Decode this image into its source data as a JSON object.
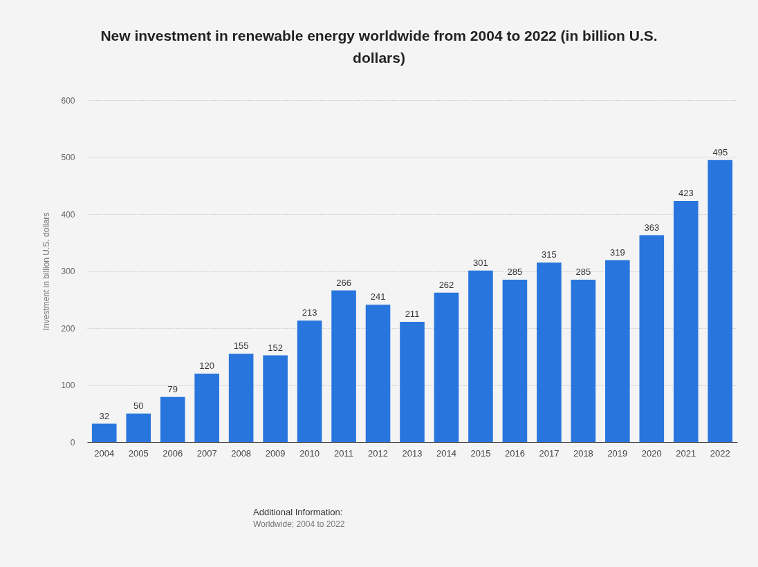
{
  "chart_data": {
    "type": "bar",
    "title": "New investment in renewable energy worldwide from 2004 to 2022 (in billion U.S. dollars)",
    "ylabel": "Investment in billion U.S. dollars",
    "categories": [
      "2004",
      "2005",
      "2006",
      "2007",
      "2008",
      "2009",
      "2010",
      "2011",
      "2012",
      "2013",
      "2014",
      "2015",
      "2016",
      "2017",
      "2018",
      "2019",
      "2020",
      "2021",
      "2022"
    ],
    "values": [
      32,
      50,
      79,
      120,
      155,
      152,
      213,
      266,
      241,
      211,
      262,
      301,
      285,
      315,
      285,
      319,
      363,
      423,
      495
    ],
    "color": "#2876dd",
    "ylim": [
      0,
      600
    ],
    "yticks": [
      0,
      100,
      200,
      300,
      400,
      500,
      600
    ],
    "grid": "y",
    "data_labels": true,
    "annotations": [
      "Additional Information:",
      "Worldwide; 2004 to 2022"
    ]
  }
}
